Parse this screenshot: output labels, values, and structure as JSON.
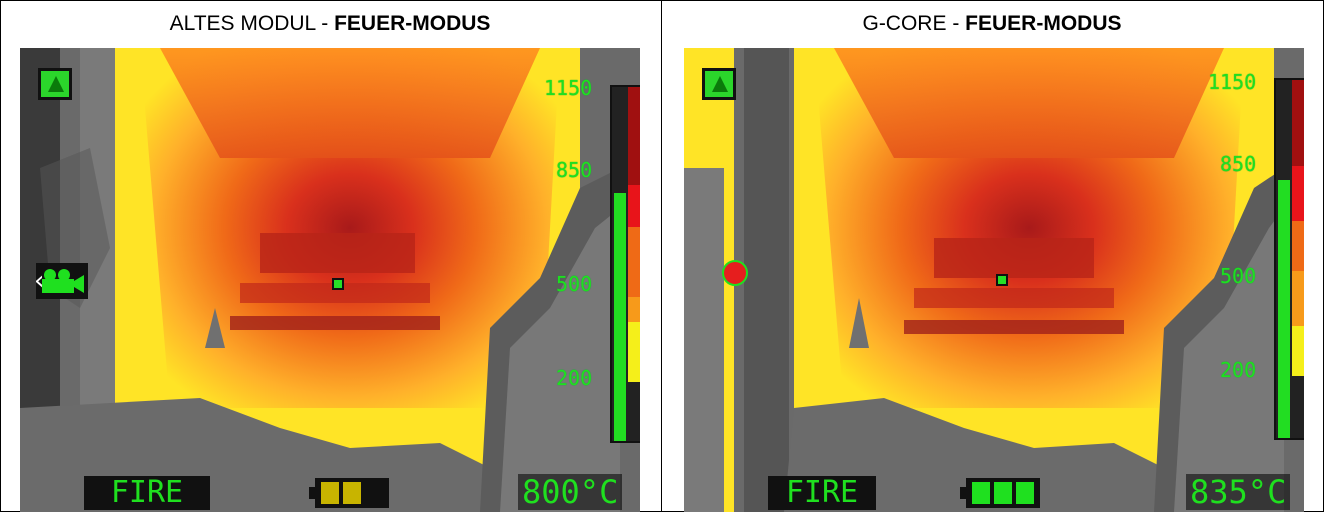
{
  "panels": [
    {
      "caption_prefix": "ALTES MODUL - ",
      "caption_bold": "FEUER-MODUS",
      "mode_label": "FIRE",
      "temperature": "800°C",
      "scale": [
        "1150",
        "850",
        "500",
        "200"
      ],
      "scale_level_fraction": 0.7,
      "battery_cells_filled": 2,
      "battery_color": "#c8b400",
      "side_icon": "camera-icon",
      "colors": {
        "scale_text": "#1fe01f"
      }
    },
    {
      "caption_prefix": "G-CORE - ",
      "caption_bold": "FEUER-MODUS",
      "mode_label": "FIRE",
      "temperature": "835°C",
      "scale": [
        "1150",
        "850",
        "500",
        "200"
      ],
      "scale_level_fraction": 0.72,
      "battery_cells_filled": 3,
      "battery_color": "#1fe01f",
      "side_icon": "record-dot-icon",
      "colors": {
        "scale_text": "#1fe01f"
      }
    }
  ]
}
